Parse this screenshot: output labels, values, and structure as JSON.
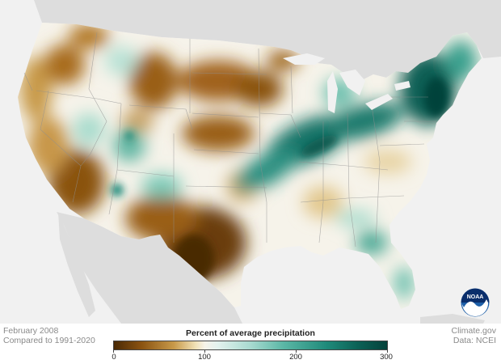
{
  "map": {
    "colors": {
      "ocean": "#f1f1f1",
      "land_outside": "#dddddd",
      "dry": "#7a4a0f",
      "wet": "#0b5f54",
      "average": "#f6f3ea"
    }
  },
  "legend": {
    "title": "Percent of average precipitation",
    "ticks": [
      "0",
      "100",
      "200",
      "300"
    ]
  },
  "footer": {
    "date": "February 2008",
    "baseline": "Compared to 1991-2020",
    "credit": "Climate.gov",
    "source": "Data: NCEI"
  },
  "logo": {
    "icon": "noaa-logo-icon",
    "text": "NOAA"
  }
}
